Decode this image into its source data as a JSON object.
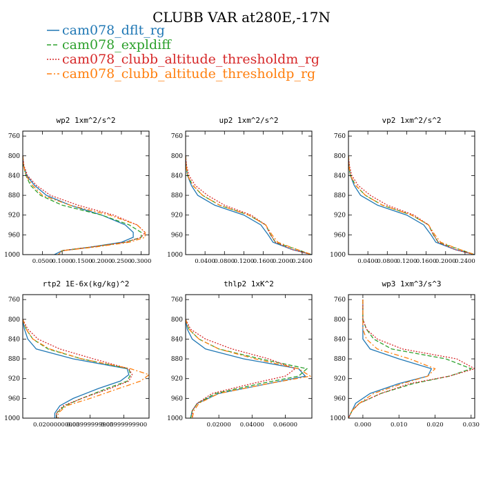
{
  "figure": {
    "title": "CLUBB VAR at280E,-17N"
  },
  "series": [
    {
      "name": "cam078_dflt_rg",
      "color": "#1f77b4",
      "dash": "solid"
    },
    {
      "name": "cam078_expldiff",
      "color": "#2ca02c",
      "dash": "dashed"
    },
    {
      "name": "cam078_clubb_altitude_thresholdm_rg",
      "color": "#d62728",
      "dash": "dotted"
    },
    {
      "name": "cam078_clubb_altitude_thresholdp_rg",
      "color": "#ff7f0e",
      "dash": "dashdot"
    }
  ],
  "chart_data": [
    {
      "type": "line",
      "title": "wp2  1xm^2/s^2",
      "ylim": [
        1000,
        750
      ],
      "yticks": [
        760,
        800,
        840,
        880,
        920,
        960,
        1000
      ],
      "xlim": [
        0,
        0.32
      ],
      "xticks": [
        0.05,
        0.1,
        0.15,
        0.2,
        0.25,
        0.3
      ],
      "xtick_labels": [
        "0.0500",
        "0.1000",
        "0.1500",
        "0.2000",
        "0.2500",
        "0.3000"
      ],
      "series": [
        {
          "y": [
            800,
            820,
            840,
            860,
            880,
            900,
            920,
            940,
            955,
            965,
            975,
            985,
            992,
            1000
          ],
          "values": [
            0,
            0.002,
            0.01,
            0.03,
            0.06,
            0.12,
            0.2,
            0.26,
            0.28,
            0.28,
            0.25,
            0.17,
            0.1,
            0.08
          ]
        },
        {
          "y": [
            800,
            820,
            840,
            860,
            880,
            900,
            920,
            940,
            955,
            965,
            975,
            985,
            992,
            1000
          ],
          "values": [
            0,
            0.002,
            0.008,
            0.02,
            0.045,
            0.1,
            0.2,
            0.27,
            0.3,
            0.3,
            0.26,
            0.17,
            0.1,
            0.09
          ]
        },
        {
          "y": [
            800,
            820,
            840,
            860,
            880,
            900,
            920,
            940,
            955,
            965,
            975,
            985,
            992,
            1000
          ],
          "values": [
            0,
            0.003,
            0.012,
            0.035,
            0.07,
            0.14,
            0.23,
            0.29,
            0.31,
            0.3,
            0.26,
            0.17,
            0.1,
            0.09
          ]
        },
        {
          "y": [
            800,
            820,
            840,
            860,
            880,
            900,
            920,
            940,
            955,
            965,
            975,
            985,
            992,
            1000
          ],
          "values": [
            0,
            0.002,
            0.008,
            0.025,
            0.05,
            0.12,
            0.22,
            0.29,
            0.31,
            0.31,
            0.27,
            0.18,
            0.1,
            0.09
          ]
        }
      ]
    },
    {
      "type": "line",
      "title": "up2  1xm^2/s^2",
      "ylim": [
        1000,
        750
      ],
      "yticks": [
        760,
        800,
        840,
        880,
        920,
        960,
        1000
      ],
      "xlim": [
        0,
        0.26
      ],
      "xticks": [
        0.04,
        0.08,
        0.12,
        0.16,
        0.2,
        0.24
      ],
      "xtick_labels": [
        "0.0400",
        "0.0800",
        "0.1200",
        "0.1600",
        "0.2000",
        "0.2400"
      ],
      "series": [
        {
          "y": [
            800,
            820,
            840,
            860,
            880,
            900,
            920,
            940,
            960,
            975,
            990,
            1000
          ],
          "values": [
            0,
            0.001,
            0.004,
            0.012,
            0.025,
            0.06,
            0.12,
            0.155,
            0.17,
            0.18,
            0.22,
            0.26
          ]
        },
        {
          "y": [
            800,
            820,
            840,
            860,
            880,
            900,
            920,
            940,
            960,
            975,
            990,
            1000
          ],
          "values": [
            0,
            0.001,
            0.004,
            0.015,
            0.035,
            0.07,
            0.13,
            0.165,
            0.175,
            0.185,
            0.23,
            0.26
          ]
        },
        {
          "y": [
            800,
            820,
            840,
            860,
            880,
            900,
            920,
            940,
            960,
            975,
            990,
            1000
          ],
          "values": [
            0,
            0.002,
            0.007,
            0.02,
            0.045,
            0.08,
            0.135,
            0.165,
            0.175,
            0.185,
            0.22,
            0.26
          ]
        },
        {
          "y": [
            800,
            820,
            840,
            860,
            880,
            900,
            920,
            940,
            960,
            975,
            990,
            1000
          ],
          "values": [
            0,
            0.001,
            0.004,
            0.015,
            0.035,
            0.07,
            0.13,
            0.165,
            0.178,
            0.19,
            0.23,
            0.26
          ]
        }
      ]
    },
    {
      "type": "line",
      "title": "vp2  1xm^2/s^2",
      "ylim": [
        1000,
        750
      ],
      "yticks": [
        760,
        800,
        840,
        880,
        920,
        960,
        1000
      ],
      "xlim": [
        0,
        0.26
      ],
      "xticks": [
        0.04,
        0.08,
        0.12,
        0.16,
        0.2,
        0.24
      ],
      "xtick_labels": [
        "0.0400",
        "0.0800",
        "0.1200",
        "0.1600",
        "0.2000",
        "0.2400"
      ],
      "series": [
        {
          "y": [
            800,
            820,
            840,
            860,
            880,
            900,
            920,
            940,
            960,
            975,
            990,
            1000
          ],
          "values": [
            0,
            0.001,
            0.004,
            0.012,
            0.025,
            0.06,
            0.12,
            0.155,
            0.17,
            0.18,
            0.22,
            0.26
          ]
        },
        {
          "y": [
            800,
            820,
            840,
            860,
            880,
            900,
            920,
            940,
            960,
            975,
            990,
            1000
          ],
          "values": [
            0,
            0.001,
            0.004,
            0.015,
            0.035,
            0.07,
            0.13,
            0.165,
            0.175,
            0.185,
            0.23,
            0.26
          ]
        },
        {
          "y": [
            800,
            820,
            840,
            860,
            880,
            900,
            920,
            940,
            960,
            975,
            990,
            1000
          ],
          "values": [
            0,
            0.002,
            0.007,
            0.02,
            0.045,
            0.08,
            0.135,
            0.165,
            0.175,
            0.185,
            0.22,
            0.26
          ]
        },
        {
          "y": [
            800,
            820,
            840,
            860,
            880,
            900,
            920,
            940,
            960,
            975,
            990,
            1000
          ],
          "values": [
            0,
            0.001,
            0.004,
            0.015,
            0.035,
            0.07,
            0.13,
            0.165,
            0.178,
            0.19,
            0.23,
            0.26
          ]
        }
      ]
    },
    {
      "type": "line",
      "title": "rtp2  1E-6x(kg/kg)^2",
      "ylim": [
        1000,
        750
      ],
      "yticks": [
        760,
        800,
        840,
        880,
        920,
        960,
        1000
      ],
      "xlim": [
        0,
        0.075
      ],
      "xticks": [
        0.02,
        0.04,
        0.06
      ],
      "xtick_labels": [
        "0.02000000000",
        "0.03999999900",
        "0.05999999900"
      ],
      "series": [
        {
          "y": [
            800,
            820,
            840,
            860,
            880,
            900,
            912,
            925,
            940,
            960,
            975,
            990,
            1000
          ],
          "values": [
            0,
            0.001,
            0.003,
            0.008,
            0.03,
            0.062,
            0.063,
            0.058,
            0.045,
            0.03,
            0.022,
            0.019,
            0.019
          ]
        },
        {
          "y": [
            800,
            820,
            840,
            860,
            880,
            900,
            912,
            925,
            940,
            960,
            975,
            990,
            1000
          ],
          "values": [
            0,
            0.002,
            0.006,
            0.015,
            0.035,
            0.063,
            0.064,
            0.062,
            0.05,
            0.035,
            0.025,
            0.02,
            0.02
          ]
        },
        {
          "y": [
            800,
            820,
            840,
            860,
            880,
            900,
            912,
            925,
            940,
            960,
            975,
            990,
            1000
          ],
          "values": [
            0,
            0.003,
            0.009,
            0.022,
            0.042,
            0.063,
            0.065,
            0.063,
            0.052,
            0.035,
            0.024,
            0.02,
            0.02
          ]
        },
        {
          "y": [
            800,
            820,
            840,
            860,
            880,
            900,
            912,
            925,
            940,
            960,
            975,
            990,
            1000
          ],
          "values": [
            0,
            0.002,
            0.006,
            0.016,
            0.035,
            0.064,
            0.075,
            0.07,
            0.057,
            0.04,
            0.026,
            0.021,
            0.021
          ]
        }
      ]
    },
    {
      "type": "line",
      "title": "thlp2  1xK^2",
      "ylim": [
        1000,
        750
      ],
      "yticks": [
        760,
        800,
        840,
        880,
        920,
        960,
        1000
      ],
      "xlim": [
        0,
        0.076
      ],
      "xticks": [
        0.02,
        0.04,
        0.06
      ],
      "xtick_labels": [
        "0.02000",
        "0.04000",
        "0.06000"
      ],
      "series": [
        {
          "y": [
            800,
            820,
            840,
            860,
            880,
            900,
            915,
            930,
            950,
            970,
            985,
            1000
          ],
          "values": [
            0,
            0.001,
            0.004,
            0.012,
            0.035,
            0.068,
            0.072,
            0.05,
            0.02,
            0.007,
            0.004,
            0.003
          ]
        },
        {
          "y": [
            800,
            820,
            840,
            860,
            880,
            900,
            915,
            930,
            950,
            970,
            985,
            1000
          ],
          "values": [
            0,
            0.002,
            0.008,
            0.02,
            0.045,
            0.073,
            0.068,
            0.045,
            0.018,
            0.007,
            0.004,
            0.003
          ]
        },
        {
          "y": [
            800,
            820,
            840,
            860,
            880,
            900,
            915,
            930,
            950,
            970,
            985,
            1000
          ],
          "values": [
            0,
            0.003,
            0.012,
            0.028,
            0.05,
            0.066,
            0.06,
            0.04,
            0.016,
            0.007,
            0.004,
            0.004
          ]
        },
        {
          "y": [
            800,
            820,
            840,
            860,
            880,
            900,
            915,
            930,
            950,
            970,
            985,
            1000
          ],
          "values": [
            0,
            0.002,
            0.008,
            0.02,
            0.042,
            0.068,
            0.075,
            0.05,
            0.02,
            0.008,
            0.005,
            0.004
          ]
        }
      ]
    },
    {
      "type": "line",
      "title": "wp3  1xm^3/s^3",
      "ylim": [
        1000,
        750
      ],
      "yticks": [
        760,
        800,
        840,
        880,
        920,
        960,
        1000
      ],
      "xlim": [
        -0.004,
        0.031
      ],
      "xticks": [
        0,
        0.01,
        0.02,
        0.03
      ],
      "xtick_labels": [
        "0.000",
        "0.010",
        "0.020",
        "0.030"
      ],
      "series": [
        {
          "y": [
            760,
            800,
            820,
            840,
            860,
            880,
            900,
            915,
            930,
            950,
            970,
            985,
            1000
          ],
          "values": [
            0,
            0,
            0,
            0,
            0.002,
            0.01,
            0.019,
            0.018,
            0.01,
            0.002,
            -0.002,
            -0.003,
            -0.004
          ]
        },
        {
          "y": [
            760,
            800,
            820,
            840,
            860,
            880,
            900,
            915,
            930,
            950,
            970,
            985,
            1000
          ],
          "values": [
            0,
            0,
            0.001,
            0.003,
            0.008,
            0.023,
            0.03,
            0.024,
            0.014,
            0.005,
            -0.001,
            -0.003,
            -0.004
          ]
        },
        {
          "y": [
            760,
            800,
            820,
            840,
            860,
            880,
            900,
            915,
            930,
            950,
            970,
            985,
            1000
          ],
          "values": [
            0,
            0,
            0.001,
            0.004,
            0.011,
            0.026,
            0.031,
            0.024,
            0.013,
            0.005,
            -0.001,
            -0.003,
            -0.004
          ]
        },
        {
          "y": [
            760,
            800,
            820,
            840,
            860,
            880,
            900,
            915,
            930,
            950,
            970,
            985,
            1000
          ],
          "values": [
            0,
            0,
            0,
            0.001,
            0.004,
            0.013,
            0.02,
            0.018,
            0.011,
            0.003,
            -0.001,
            -0.003,
            -0.004
          ]
        }
      ]
    }
  ]
}
